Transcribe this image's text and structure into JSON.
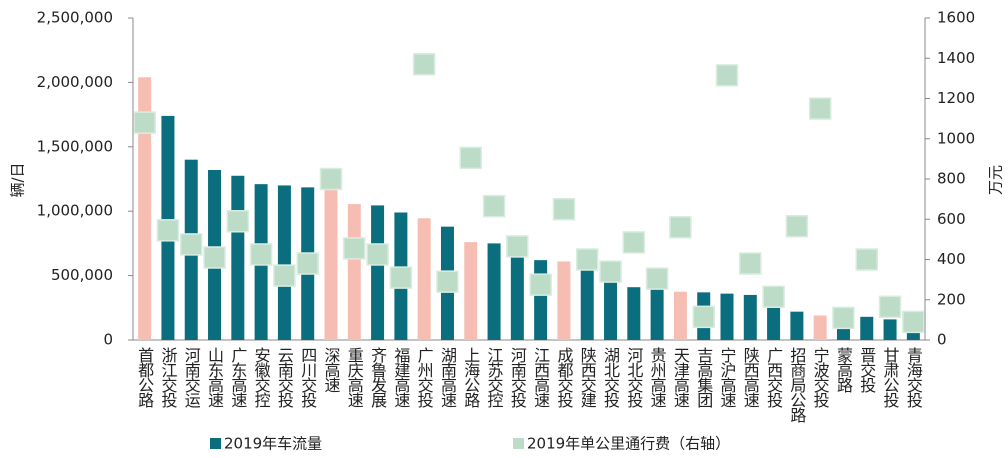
{
  "chart_data": {
    "type": "bar",
    "categories": [
      "首都公路",
      "浙江交投",
      "河南交运",
      "山东高速",
      "广东高速",
      "安徽交控",
      "云南交投",
      "四川交投",
      "深高速",
      "重庆高速",
      "齐鲁发展",
      "福建高速",
      "广州交投",
      "湖南高速",
      "上海公路",
      "江苏交控",
      "河南交投",
      "江西高速",
      "成都交投",
      "陕西交建",
      "湖北交投",
      "河北交投",
      "贵州高速",
      "天津高速",
      "吉高集团",
      "宁沪高速",
      "陕西高速",
      "广西交投",
      "招商局公路",
      "宁波交投",
      "蒙高路",
      "晋交投",
      "甘肃公投",
      "青海交投"
    ],
    "series": [
      {
        "name": "2019年车流量",
        "color": "#0b6e7f",
        "point_colors": [
          "#f6beb2",
          "#0b6e7f",
          "#0b6e7f",
          "#0b6e7f",
          "#0b6e7f",
          "#0b6e7f",
          "#0b6e7f",
          "#0b6e7f",
          "#f6beb2",
          "#f6beb2",
          "#0b6e7f",
          "#0b6e7f",
          "#f6beb2",
          "#0b6e7f",
          "#f6beb2",
          "#0b6e7f",
          "#0b6e7f",
          "#0b6e7f",
          "#f6beb2",
          "#0b6e7f",
          "#0b6e7f",
          "#0b6e7f",
          "#0b6e7f",
          "#f6beb2",
          "#0b6e7f",
          "#0b6e7f",
          "#0b6e7f",
          "#0b6e7f",
          "#0b6e7f",
          "#f6beb2",
          "#0b6e7f",
          "#0b6e7f",
          "#0b6e7f",
          "#0b6e7f"
        ],
        "values": [
          2040000,
          1740000,
          1400000,
          1320000,
          1275000,
          1210000,
          1200000,
          1185000,
          1165000,
          1055000,
          1045000,
          990000,
          945000,
          880000,
          760000,
          750000,
          690000,
          620000,
          610000,
          590000,
          480000,
          410000,
          400000,
          375000,
          370000,
          360000,
          350000,
          300000,
          220000,
          190000,
          170000,
          180000,
          160000,
          130000
        ]
      },
      {
        "name": "2019年单公里通行费（右轴）",
        "color": "#bcdcc8",
        "axis": "y2",
        "marker": "square",
        "values": [
          1080,
          545,
          475,
          410,
          590,
          425,
          320,
          380,
          800,
          455,
          425,
          310,
          1370,
          290,
          905,
          665,
          465,
          275,
          650,
          400,
          340,
          485,
          305,
          560,
          115,
          1315,
          380,
          215,
          565,
          1150,
          110,
          400,
          165,
          90
        ]
      }
    ],
    "y_label": "辆/日",
    "y2_label": "万元",
    "ylim": [
      0,
      2500000
    ],
    "yticks": [
      0,
      {
        "value": 500000,
        "label": "500,000"
      },
      {
        "value": 1000000,
        "label": "1,000,000"
      },
      {
        "value": 1500000,
        "label": "1,500,000"
      },
      {
        "value": 2000000,
        "label": "2,000,000"
      },
      {
        "value": 2500000,
        "label": "2,500,000"
      }
    ],
    "y2lim": [
      0,
      1600
    ],
    "y2ticks": [
      0,
      200,
      400,
      600,
      800,
      1000,
      1200,
      1400,
      1600
    ],
    "grid": false,
    "legend": "bottom"
  }
}
